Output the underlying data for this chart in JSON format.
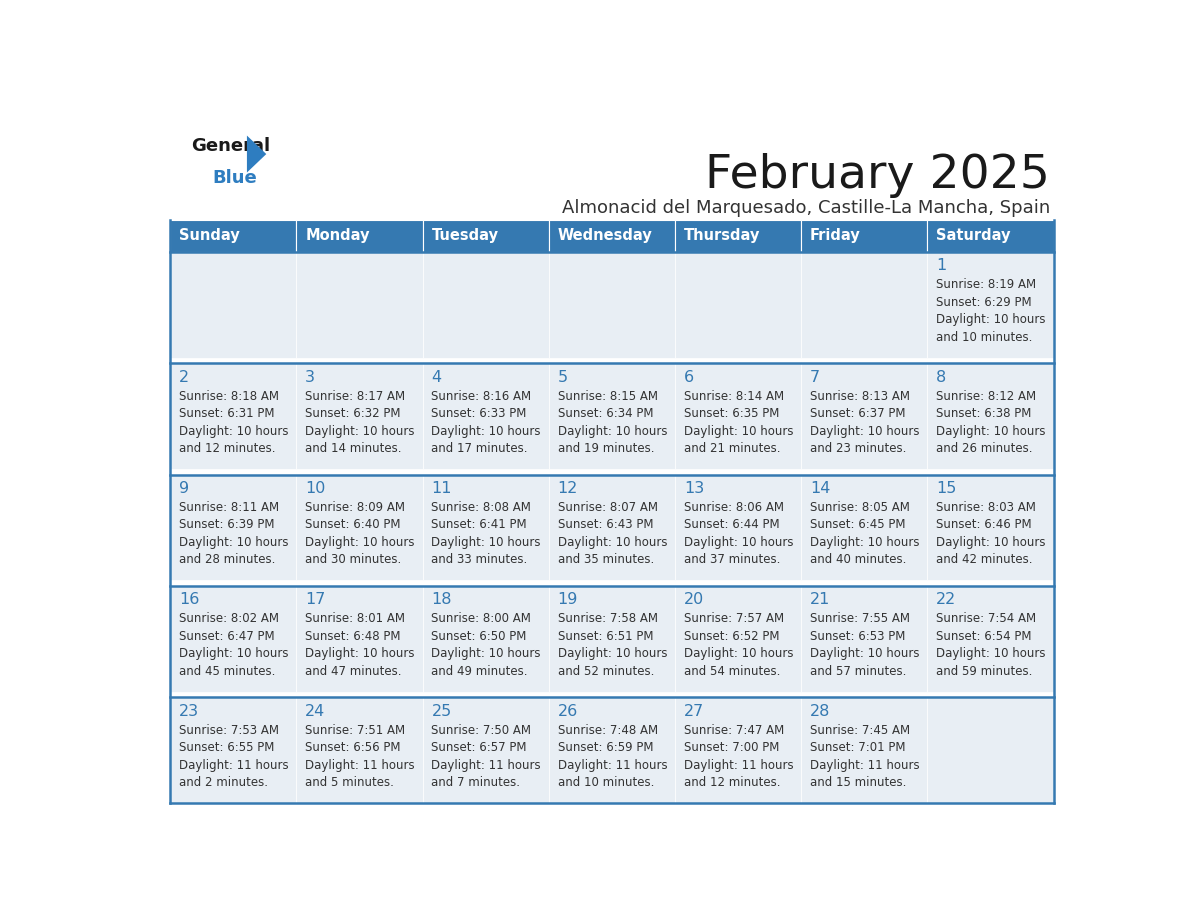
{
  "title": "February 2025",
  "subtitle": "Almonacid del Marquesado, Castille-La Mancha, Spain",
  "days_of_week": [
    "Sunday",
    "Monday",
    "Tuesday",
    "Wednesday",
    "Thursday",
    "Friday",
    "Saturday"
  ],
  "header_bg": "#3579B1",
  "header_text": "#FFFFFF",
  "cell_bg": "#E8EEF4",
  "empty_cell_bg": "#E8EEF4",
  "row_sep_color": "#FFFFFF",
  "border_color": "#3579B1",
  "day_num_color": "#3579B1",
  "info_color": "#333333",
  "title_color": "#1a1a1a",
  "subtitle_color": "#333333",
  "logo_general_color": "#1a1a1a",
  "logo_blue_color": "#2E7DC0",
  "calendar": [
    [
      null,
      null,
      null,
      null,
      null,
      null,
      {
        "day": 1,
        "sunrise": "8:19 AM",
        "sunset": "6:29 PM",
        "daylight_line1": "Daylight: 10 hours",
        "daylight_line2": "and 10 minutes."
      }
    ],
    [
      {
        "day": 2,
        "sunrise": "8:18 AM",
        "sunset": "6:31 PM",
        "daylight_line1": "Daylight: 10 hours",
        "daylight_line2": "and 12 minutes."
      },
      {
        "day": 3,
        "sunrise": "8:17 AM",
        "sunset": "6:32 PM",
        "daylight_line1": "Daylight: 10 hours",
        "daylight_line2": "and 14 minutes."
      },
      {
        "day": 4,
        "sunrise": "8:16 AM",
        "sunset": "6:33 PM",
        "daylight_line1": "Daylight: 10 hours",
        "daylight_line2": "and 17 minutes."
      },
      {
        "day": 5,
        "sunrise": "8:15 AM",
        "sunset": "6:34 PM",
        "daylight_line1": "Daylight: 10 hours",
        "daylight_line2": "and 19 minutes."
      },
      {
        "day": 6,
        "sunrise": "8:14 AM",
        "sunset": "6:35 PM",
        "daylight_line1": "Daylight: 10 hours",
        "daylight_line2": "and 21 minutes."
      },
      {
        "day": 7,
        "sunrise": "8:13 AM",
        "sunset": "6:37 PM",
        "daylight_line1": "Daylight: 10 hours",
        "daylight_line2": "and 23 minutes."
      },
      {
        "day": 8,
        "sunrise": "8:12 AM",
        "sunset": "6:38 PM",
        "daylight_line1": "Daylight: 10 hours",
        "daylight_line2": "and 26 minutes."
      }
    ],
    [
      {
        "day": 9,
        "sunrise": "8:11 AM",
        "sunset": "6:39 PM",
        "daylight_line1": "Daylight: 10 hours",
        "daylight_line2": "and 28 minutes."
      },
      {
        "day": 10,
        "sunrise": "8:09 AM",
        "sunset": "6:40 PM",
        "daylight_line1": "Daylight: 10 hours",
        "daylight_line2": "and 30 minutes."
      },
      {
        "day": 11,
        "sunrise": "8:08 AM",
        "sunset": "6:41 PM",
        "daylight_line1": "Daylight: 10 hours",
        "daylight_line2": "and 33 minutes."
      },
      {
        "day": 12,
        "sunrise": "8:07 AM",
        "sunset": "6:43 PM",
        "daylight_line1": "Daylight: 10 hours",
        "daylight_line2": "and 35 minutes."
      },
      {
        "day": 13,
        "sunrise": "8:06 AM",
        "sunset": "6:44 PM",
        "daylight_line1": "Daylight: 10 hours",
        "daylight_line2": "and 37 minutes."
      },
      {
        "day": 14,
        "sunrise": "8:05 AM",
        "sunset": "6:45 PM",
        "daylight_line1": "Daylight: 10 hours",
        "daylight_line2": "and 40 minutes."
      },
      {
        "day": 15,
        "sunrise": "8:03 AM",
        "sunset": "6:46 PM",
        "daylight_line1": "Daylight: 10 hours",
        "daylight_line2": "and 42 minutes."
      }
    ],
    [
      {
        "day": 16,
        "sunrise": "8:02 AM",
        "sunset": "6:47 PM",
        "daylight_line1": "Daylight: 10 hours",
        "daylight_line2": "and 45 minutes."
      },
      {
        "day": 17,
        "sunrise": "8:01 AM",
        "sunset": "6:48 PM",
        "daylight_line1": "Daylight: 10 hours",
        "daylight_line2": "and 47 minutes."
      },
      {
        "day": 18,
        "sunrise": "8:00 AM",
        "sunset": "6:50 PM",
        "daylight_line1": "Daylight: 10 hours",
        "daylight_line2": "and 49 minutes."
      },
      {
        "day": 19,
        "sunrise": "7:58 AM",
        "sunset": "6:51 PM",
        "daylight_line1": "Daylight: 10 hours",
        "daylight_line2": "and 52 minutes."
      },
      {
        "day": 20,
        "sunrise": "7:57 AM",
        "sunset": "6:52 PM",
        "daylight_line1": "Daylight: 10 hours",
        "daylight_line2": "and 54 minutes."
      },
      {
        "day": 21,
        "sunrise": "7:55 AM",
        "sunset": "6:53 PM",
        "daylight_line1": "Daylight: 10 hours",
        "daylight_line2": "and 57 minutes."
      },
      {
        "day": 22,
        "sunrise": "7:54 AM",
        "sunset": "6:54 PM",
        "daylight_line1": "Daylight: 10 hours",
        "daylight_line2": "and 59 minutes."
      }
    ],
    [
      {
        "day": 23,
        "sunrise": "7:53 AM",
        "sunset": "6:55 PM",
        "daylight_line1": "Daylight: 11 hours",
        "daylight_line2": "and 2 minutes."
      },
      {
        "day": 24,
        "sunrise": "7:51 AM",
        "sunset": "6:56 PM",
        "daylight_line1": "Daylight: 11 hours",
        "daylight_line2": "and 5 minutes."
      },
      {
        "day": 25,
        "sunrise": "7:50 AM",
        "sunset": "6:57 PM",
        "daylight_line1": "Daylight: 11 hours",
        "daylight_line2": "and 7 minutes."
      },
      {
        "day": 26,
        "sunrise": "7:48 AM",
        "sunset": "6:59 PM",
        "daylight_line1": "Daylight: 11 hours",
        "daylight_line2": "and 10 minutes."
      },
      {
        "day": 27,
        "sunrise": "7:47 AM",
        "sunset": "7:00 PM",
        "daylight_line1": "Daylight: 11 hours",
        "daylight_line2": "and 12 minutes."
      },
      {
        "day": 28,
        "sunrise": "7:45 AM",
        "sunset": "7:01 PM",
        "daylight_line1": "Daylight: 11 hours",
        "daylight_line2": "and 15 minutes."
      },
      null
    ]
  ]
}
